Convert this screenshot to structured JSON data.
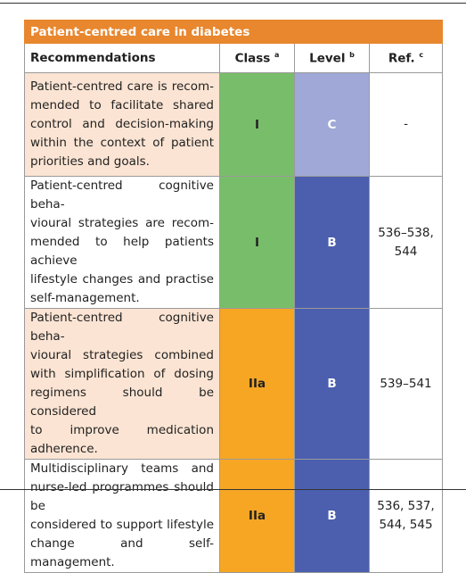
{
  "title": "Patient-centred care in diabetes",
  "header": {
    "recommendations": "Recommendations",
    "class": {
      "text": "Class",
      "sup": "a"
    },
    "level": {
      "text": "Level",
      "sup": "b"
    },
    "ref": {
      "text": "Ref.",
      "sup": "c"
    }
  },
  "rows": [
    {
      "recommendation": [
        "Patient-centred care is recom-",
        "mended to facilitate shared",
        "control and decision-making",
        "within the context of patient",
        "priorities and goals."
      ],
      "class": "I",
      "level": "C",
      "ref": [
        "-"
      ]
    },
    {
      "recommendation": [
        "Patient-centred cognitive beha-",
        "vioural strategies are recom-",
        "mended to help patients achieve",
        "lifestyle changes and practise",
        "self-management."
      ],
      "class": "I",
      "level": "B",
      "ref": [
        "536–538,",
        "544"
      ]
    },
    {
      "recommendation": [
        "Patient-centred cognitive beha-",
        "vioural strategies combined",
        "with simplification of dosing",
        "regimens should be considered",
        "to improve medication",
        "adherence."
      ],
      "class": "IIa",
      "level": "B",
      "ref": [
        "539–541"
      ]
    },
    {
      "recommendation": [
        "Multidisciplinary teams and",
        "nurse-led programmes should be",
        "considered to support lifestyle",
        "change and self-management."
      ],
      "class": "IIa",
      "level": "B",
      "ref": [
        "536, 537,",
        "544, 545"
      ]
    }
  ]
}
